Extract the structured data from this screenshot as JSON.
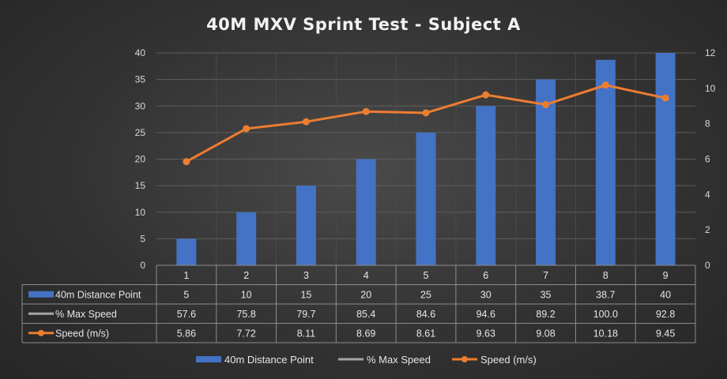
{
  "chart_data": {
    "type": "bar",
    "title": "40M MXV Sprint Test - Subject A",
    "categories": [
      "1",
      "2",
      "3",
      "4",
      "5",
      "6",
      "7",
      "8",
      "9"
    ],
    "series": [
      {
        "name": "40m Distance Point",
        "type": "bar",
        "axis": "left",
        "color": "#4472c4",
        "values": [
          "5",
          "10",
          "15",
          "20",
          "25",
          "30",
          "35",
          "38.7",
          "40"
        ]
      },
      {
        "name": "% Max Speed",
        "type": "line",
        "axis": "right",
        "color": "#a5a5a5",
        "hidden_in_plot": true,
        "values": [
          "57.6",
          "75.8",
          "79.7",
          "85.4",
          "84.6",
          "94.6",
          "89.2",
          "100.0",
          "92.8"
        ]
      },
      {
        "name": "Speed (m/s)",
        "type": "line",
        "axis": "right",
        "color": "#ed7d31",
        "values": [
          "5.86",
          "7.72",
          "8.11",
          "8.69",
          "8.61",
          "9.63",
          "9.08",
          "10.18",
          "9.45"
        ]
      }
    ],
    "y_left": {
      "ticks": [
        "0",
        "5",
        "10",
        "15",
        "20",
        "25",
        "30",
        "35",
        "40"
      ],
      "ylim": [
        0,
        40
      ]
    },
    "y_right": {
      "ticks": [
        "0",
        "2",
        "4",
        "6",
        "8",
        "10",
        "12"
      ],
      "ylim": [
        0,
        12
      ]
    },
    "grid": true,
    "legend": "bottom",
    "data_table": true
  }
}
